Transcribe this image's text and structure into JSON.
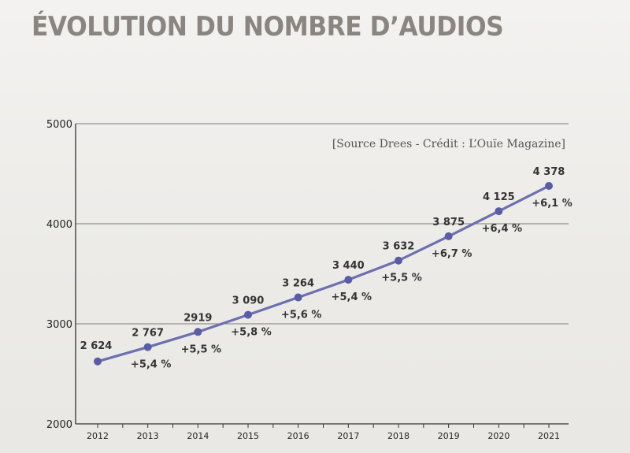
{
  "title": "ÉVOLUTION DU NOMBRE D’AUDIOS",
  "source": "[Source Drees - Crédit : L’Ouïe Magazine]",
  "colors": {
    "line": "#6d6fb0",
    "marker": "#5a5da6",
    "grid": "#7a7a7a",
    "title": "#8a8580"
  },
  "chart_data": {
    "type": "line",
    "title": "ÉVOLUTION DU NOMBRE D’AUDIOS",
    "xlabel": "",
    "ylabel": "",
    "ylim": [
      2000,
      5000
    ],
    "yticks": [
      "2000",
      "3000",
      "4000",
      "5000"
    ],
    "grid": true,
    "legend": "none",
    "x": [
      "2012",
      "2013",
      "2014",
      "2015",
      "2016",
      "2017",
      "2018",
      "2019",
      "2020",
      "2021"
    ],
    "series": [
      {
        "values": [
          2624,
          2767,
          2919,
          3090,
          3264,
          3440,
          3632,
          3875,
          4125,
          4378
        ]
      }
    ],
    "value_labels": [
      "2 624",
      "2 767",
      "2919",
      "3 090",
      "3 264",
      "3 440",
      "3 632",
      "3 875",
      "4 125",
      "4 378"
    ],
    "growth_labels": [
      "",
      "+5,4 %",
      "+5,5 %",
      "+5,8 %",
      "+5,6 %",
      "+5,4 %",
      "+5,5 %",
      "+6,7 %",
      "+6,4 %",
      "+6,1 %"
    ]
  }
}
